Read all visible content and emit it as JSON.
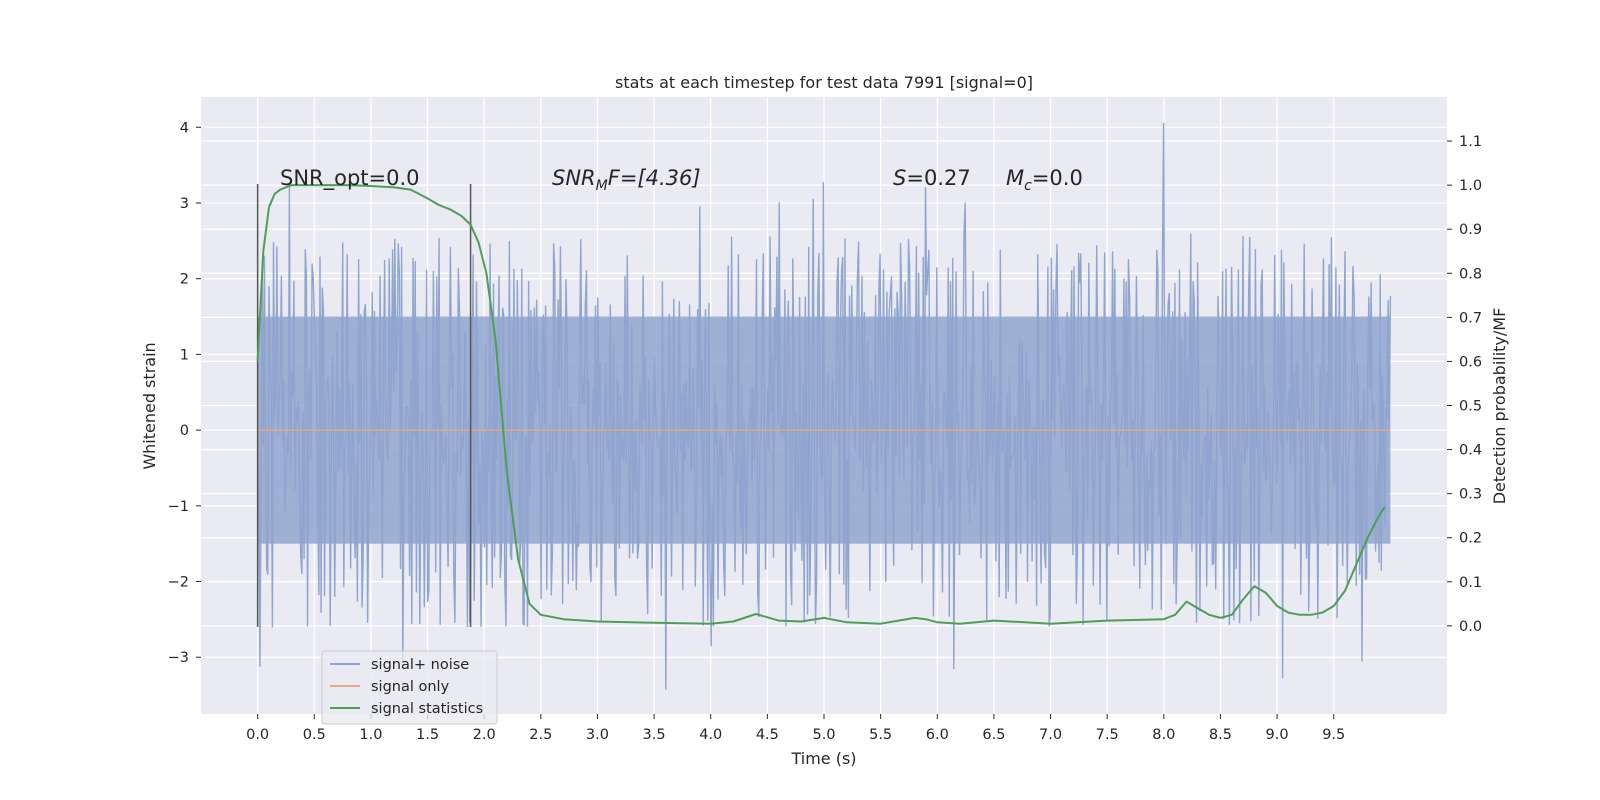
{
  "chart_data": {
    "type": "line",
    "title": "stats at each timestep for test data 7991 [signal=0]",
    "xlabel": "Time (s)",
    "ylabel": "Whitened strain",
    "y2label": "Detection probability/MF",
    "xlim": [
      -0.5,
      10.5
    ],
    "ylim": [
      -3.75,
      4.4
    ],
    "y2lim": [
      -0.2,
      1.2
    ],
    "xticks": [
      "0.0",
      "0.5",
      "1.0",
      "1.5",
      "2.0",
      "2.5",
      "3.0",
      "3.5",
      "4.0",
      "4.5",
      "5.0",
      "5.5",
      "6.0",
      "6.5",
      "7.0",
      "7.5",
      "8.0",
      "8.5",
      "9.0",
      "9.5"
    ],
    "yticks": [
      "−3",
      "−2",
      "−1",
      "0",
      "1",
      "2",
      "3",
      "4"
    ],
    "y2ticks": [
      "0.0",
      "0.1",
      "0.2",
      "0.3",
      "0.4",
      "0.5",
      "0.6",
      "0.7",
      "0.8",
      "0.9",
      "1.0",
      "1.1"
    ],
    "grid": true,
    "legend_position": "lower-left",
    "annotations": {
      "snr_opt": "SNR_opt=0.0",
      "snr_mf_base": "SNR",
      "snr_mf_sub": "M",
      "snr_mf_rest": "F=[4.36]",
      "s_var": "S",
      "s_rest": "=0.27",
      "mc_var": "M",
      "mc_sub": "c",
      "mc_rest": "=0.0"
    },
    "window_markers": [
      {
        "x": 0.0,
        "y": [
          -2.6,
          3.25
        ]
      },
      {
        "x": 1.88,
        "y": [
          -2.6,
          3.25
        ]
      }
    ],
    "series": [
      {
        "name": "signal+ noise",
        "color": "#8fa4ce",
        "axis": "left",
        "x_range": [
          0.0,
          10.0
        ],
        "sample_count": 1000,
        "envelope": [
          -1.5,
          1.5
        ],
        "spikes": [
          {
            "x": 8.0,
            "y": 4.05
          },
          {
            "x": 5.0,
            "y": 3.27
          },
          {
            "x": 0.28,
            "y": 3.25
          },
          {
            "x": 5.9,
            "y": 3.2
          },
          {
            "x": 4.9,
            "y": 3.05
          },
          {
            "x": 4.6,
            "y": 3.0
          },
          {
            "x": 3.9,
            "y": 2.95
          },
          {
            "x": 6.25,
            "y": 3.0
          },
          {
            "x": 3.6,
            "y": -3.42
          },
          {
            "x": 9.05,
            "y": -3.27
          },
          {
            "x": 6.15,
            "y": -3.15
          },
          {
            "x": 0.02,
            "y": -3.12
          },
          {
            "x": 1.28,
            "y": -3.1
          },
          {
            "x": 9.75,
            "y": -3.05
          },
          {
            "x": 4.0,
            "y": -2.85
          }
        ]
      },
      {
        "name": "signal only",
        "color": "#e8a587",
        "axis": "left",
        "x": [
          0.0,
          10.0
        ],
        "y": [
          0.0,
          0.0
        ]
      },
      {
        "name": "signal statistics",
        "color": "#4e9e58",
        "axis": "right",
        "x": [
          0.0,
          0.05,
          0.1,
          0.15,
          0.2,
          0.3,
          0.4,
          0.6,
          0.8,
          1.0,
          1.2,
          1.35,
          1.5,
          1.6,
          1.7,
          1.8,
          1.88,
          1.95,
          2.02,
          2.1,
          2.2,
          2.3,
          2.4,
          2.5,
          2.7,
          3.0,
          3.5,
          4.0,
          4.2,
          4.4,
          4.6,
          4.8,
          5.0,
          5.2,
          5.5,
          5.8,
          5.9,
          6.0,
          6.2,
          6.5,
          7.0,
          7.5,
          8.0,
          8.1,
          8.2,
          8.3,
          8.4,
          8.5,
          8.6,
          8.7,
          8.8,
          8.9,
          9.0,
          9.1,
          9.2,
          9.3,
          9.4,
          9.5,
          9.6,
          9.7,
          9.8,
          9.9,
          9.95
        ],
        "y": [
          0.6,
          0.85,
          0.95,
          0.98,
          0.99,
          1.0,
          1.0,
          1.0,
          1.0,
          0.998,
          0.995,
          0.99,
          0.97,
          0.955,
          0.945,
          0.93,
          0.91,
          0.87,
          0.8,
          0.65,
          0.35,
          0.15,
          0.05,
          0.025,
          0.015,
          0.01,
          0.007,
          0.005,
          0.01,
          0.027,
          0.012,
          0.01,
          0.018,
          0.008,
          0.005,
          0.018,
          0.015,
          0.008,
          0.005,
          0.012,
          0.005,
          0.012,
          0.015,
          0.025,
          0.055,
          0.04,
          0.025,
          0.018,
          0.025,
          0.06,
          0.09,
          0.075,
          0.045,
          0.03,
          0.025,
          0.025,
          0.03,
          0.045,
          0.08,
          0.14,
          0.2,
          0.25,
          0.27
        ]
      }
    ]
  }
}
